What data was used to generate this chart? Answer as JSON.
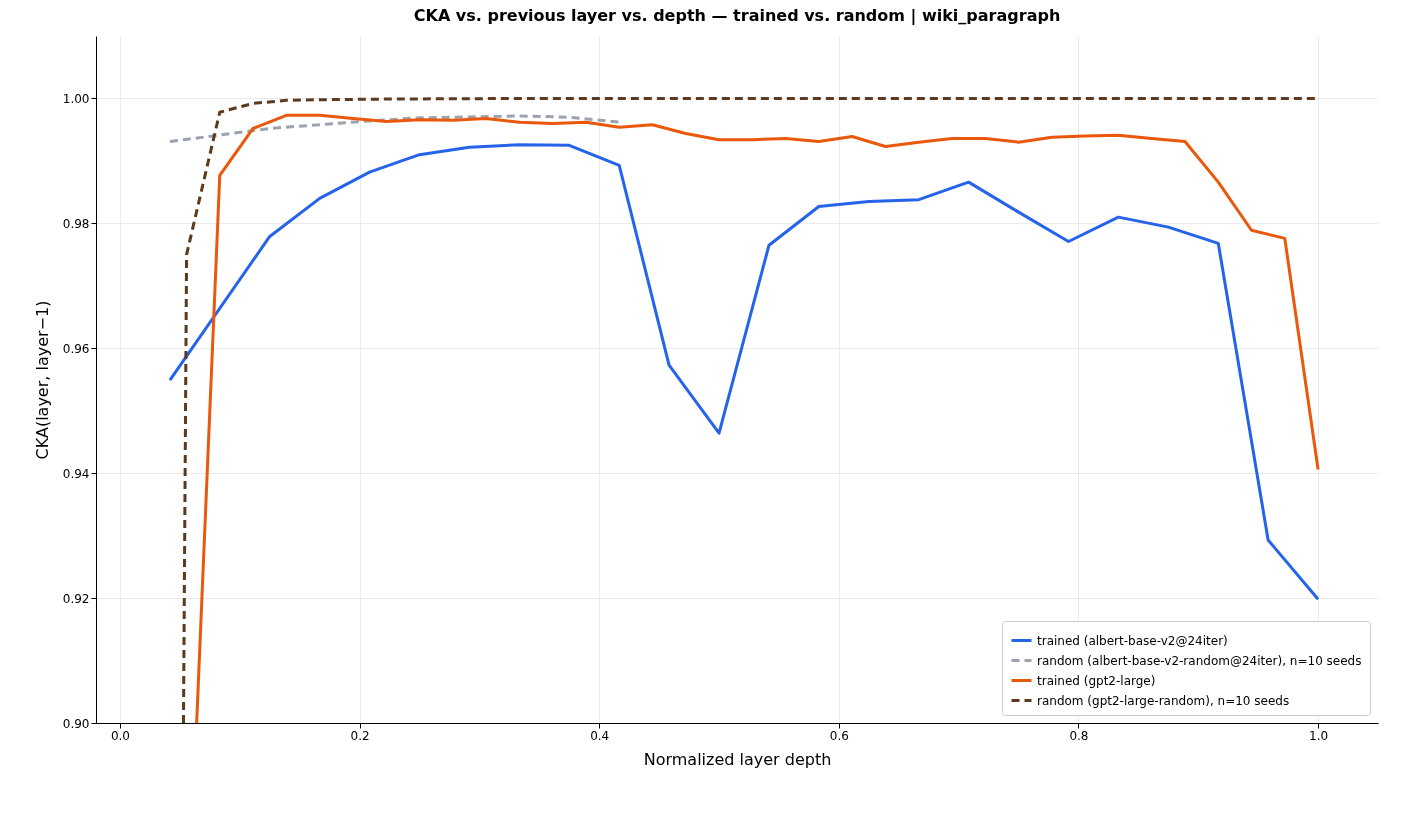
{
  "chart_data": {
    "type": "line",
    "title": "CKA vs. previous layer vs. depth — trained vs. random | wiki_paragraph",
    "xlabel": "Normalized layer depth",
    "ylabel": "CKA(layer, layer−1)",
    "xlim": [
      -0.02,
      1.05
    ],
    "xticks": [
      {
        "value": 0,
        "label": "0.0"
      },
      {
        "value": 0.2,
        "label": "0.2"
      },
      {
        "value": 0.4,
        "label": "0.4"
      },
      {
        "value": 0.6,
        "label": "0.6"
      },
      {
        "value": 0.8,
        "label": "0.8"
      },
      {
        "value": 1,
        "label": "1.0"
      }
    ],
    "ylim": [
      0.9,
      1.01
    ],
    "yticks": [
      {
        "value": 0.9,
        "label": "0.90"
      },
      {
        "value": 0.92,
        "label": "0.92"
      },
      {
        "value": 0.94,
        "label": "0.94"
      },
      {
        "value": 0.96,
        "label": "0.96"
      },
      {
        "value": 0.98,
        "label": "0.98"
      },
      {
        "value": 1,
        "label": "1.00"
      }
    ],
    "grid": true,
    "legend": "bottom right",
    "series": [
      {
        "name": "trained (albert-base-v2@24iter)",
        "color": "#2563eb",
        "line_style": "solid",
        "x": [
          0.0417,
          0.125,
          0.1667,
          0.2083,
          0.25,
          0.2917,
          0.3333,
          0.375,
          0.4167,
          0.4583,
          0.5,
          0.5417,
          0.5833,
          0.625,
          0.6667,
          0.7083,
          0.75,
          0.7917,
          0.8333,
          0.875,
          0.9167,
          0.9583,
          1.0
        ],
        "values": [
          0.9549,
          0.9779,
          0.984,
          0.9882,
          0.991,
          0.9922,
          0.9926,
          0.9925,
          0.9893,
          0.9573,
          0.9464,
          0.9765,
          0.9827,
          0.9835,
          0.9838,
          0.9866,
          0.9818,
          0.9771,
          0.981,
          0.9794,
          0.9768,
          0.9293,
          0.9198
        ]
      },
      {
        "name": "random (albert-base-v2-random@24iter), n=10 seeds",
        "color": "#9ca3af",
        "line_style": "dashed",
        "x": [
          0.0417,
          0.125,
          0.2083,
          0.25,
          0.3333,
          0.375,
          0.4167
        ],
        "values": [
          0.9931,
          0.9952,
          0.9964,
          0.9969,
          0.9972,
          0.997,
          0.9962
        ]
      },
      {
        "name": "trained (gpt2-large)",
        "color": "#ea580c",
        "line_style": "solid",
        "x": [
          0.064,
          0.0833,
          0.1111,
          0.1389,
          0.1667,
          0.1944,
          0.2222,
          0.25,
          0.2778,
          0.3056,
          0.3333,
          0.3611,
          0.3889,
          0.4167,
          0.4444,
          0.4722,
          0.5,
          0.5278,
          0.5556,
          0.5833,
          0.6111,
          0.6389,
          0.6667,
          0.6944,
          0.7222,
          0.75,
          0.7778,
          0.8056,
          0.8333,
          0.8611,
          0.8889,
          0.9167,
          0.9444,
          0.9722,
          1.0
        ],
        "values": [
          0.9,
          0.9877,
          0.9952,
          0.9973,
          0.9973,
          0.9968,
          0.9963,
          0.9966,
          0.9965,
          0.9968,
          0.9962,
          0.996,
          0.9962,
          0.9954,
          0.9958,
          0.9944,
          0.9934,
          0.9934,
          0.9936,
          0.9931,
          0.9939,
          0.9923,
          0.993,
          0.9936,
          0.9936,
          0.993,
          0.9938,
          0.994,
          0.9941,
          0.9936,
          0.9931,
          0.9866,
          0.9789,
          0.9776,
          0.9406
        ]
      },
      {
        "name": "random (gpt2-large-random), n=10 seeds",
        "color": "#5b3a1e",
        "line_style": "dashed",
        "x": [
          0.053,
          0.0556,
          0.0833,
          0.1111,
          0.1389,
          0.1667,
          0.2222,
          0.3333,
          0.5,
          1.0
        ],
        "values": [
          0.9,
          0.975,
          0.9978,
          0.9992,
          0.9997,
          0.9998,
          0.9999,
          1.0,
          1.0,
          1.0
        ]
      }
    ]
  }
}
